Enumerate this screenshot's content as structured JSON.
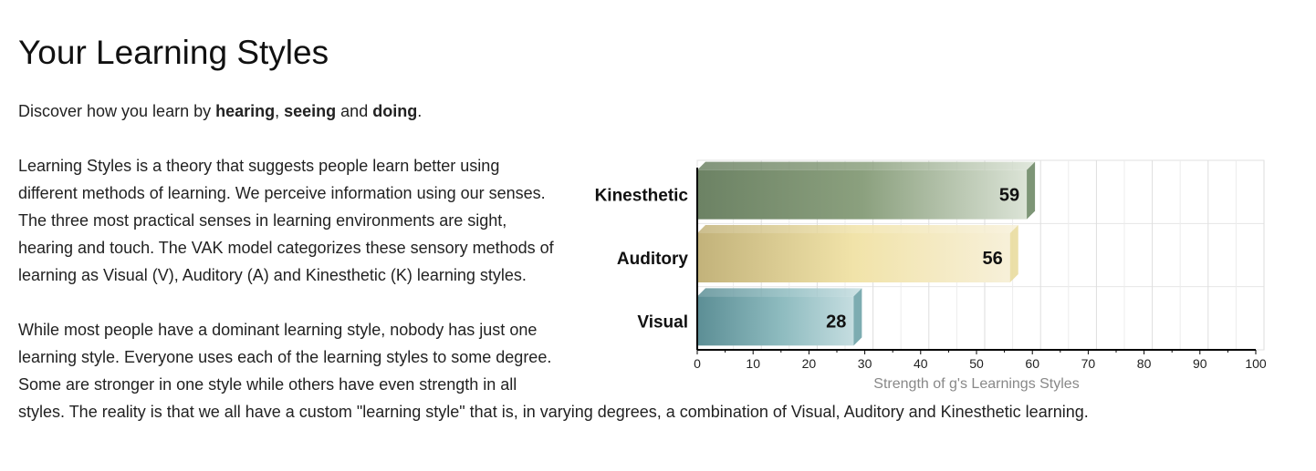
{
  "page": {
    "title": "Your Learning Styles",
    "intro": {
      "prefix": "Discover how you learn by ",
      "word1": "hearing",
      "sep1": ", ",
      "word2": "seeing",
      "sep2": " and ",
      "word3": "doing",
      "suffix": "."
    },
    "paragraph1": "Learning Styles is a theory that suggests people learn better using different methods of learning. We perceive information using our senses. The three most practical senses in learning environments are sight, hearing and touch. The VAK model categorizes these sensory methods of learning as Visual (V), Auditory (A) and Kinesthetic (K) learning styles.",
    "paragraph2": "While most people have a dominant learning style, nobody has just one learning style. Everyone uses each of the learning styles to some degree. Some are stronger in one style while others have even strength in all styles. The reality is that we all have a custom \"learning style\" that is, in varying degrees, a combination of Visual, Auditory and Kinesthetic learning."
  },
  "chart_data": {
    "type": "bar",
    "orientation": "horizontal",
    "categories": [
      "Kinesthetic",
      "Auditory",
      "Visual"
    ],
    "values": [
      59,
      56,
      28
    ],
    "colors": [
      "#6f8a67",
      "#e9dc9f",
      "#6fa3a8"
    ],
    "title": "",
    "xlabel": "Strength of g's Learnings Styles",
    "ylabel": "",
    "xlim": [
      0,
      100
    ],
    "xticks": [
      0,
      10,
      20,
      30,
      40,
      50,
      60,
      70,
      80,
      90,
      100
    ],
    "grid": true,
    "data_labels": true
  }
}
